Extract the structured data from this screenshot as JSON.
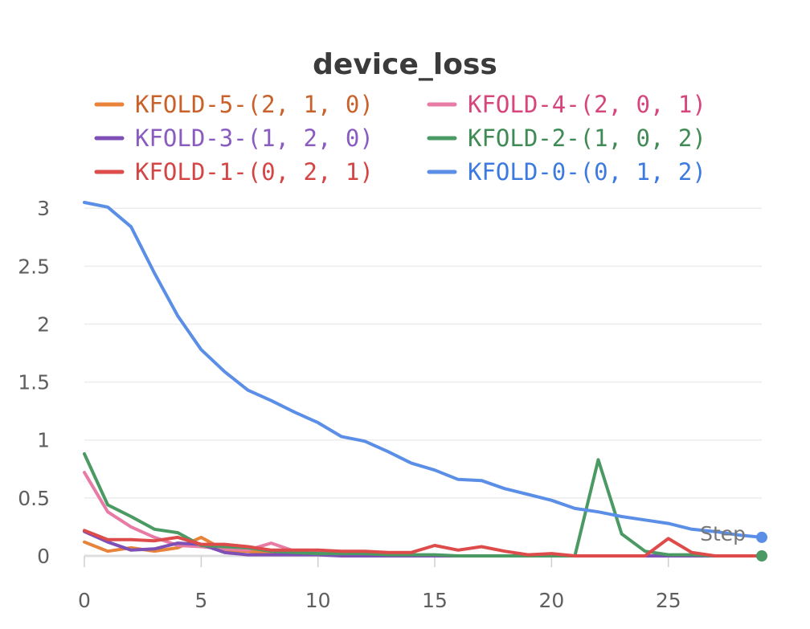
{
  "chart_data": {
    "type": "line",
    "title": "device_loss",
    "xlabel": "Step",
    "ylabel": "",
    "xlim": [
      0,
      29
    ],
    "ylim": [
      0,
      3.05
    ],
    "x_ticks": [
      0,
      5,
      10,
      15,
      20,
      25
    ],
    "y_ticks": [
      0,
      0.5,
      1,
      1.5,
      2,
      2.5,
      3
    ],
    "grid": true,
    "legend_position": "top",
    "x": [
      0,
      1,
      2,
      3,
      4,
      5,
      6,
      7,
      8,
      9,
      10,
      11,
      12,
      13,
      14,
      15,
      16,
      17,
      18,
      19,
      20,
      21,
      22,
      23,
      24,
      25,
      26,
      27,
      28,
      29
    ],
    "series": [
      {
        "name": "KFOLD-5-(2, 1, 0)",
        "color": "#e8833a",
        "text_color": "#c8622a",
        "values": [
          0.12,
          0.04,
          0.07,
          0.04,
          0.07,
          0.16,
          0.05,
          0.04,
          0.02,
          0.02,
          0.02,
          0.01,
          0.01,
          0.01,
          0.01,
          0.0,
          0.0,
          0.0,
          0.0,
          0.0,
          0.0,
          0.0,
          0.0,
          0.0,
          0.0,
          0.0,
          0.0,
          0.0,
          0.0,
          0.0
        ]
      },
      {
        "name": "KFOLD-4-(2, 0, 1)",
        "color": "#e87ba6",
        "text_color": "#d6457c",
        "values": [
          0.72,
          0.38,
          0.25,
          0.16,
          0.09,
          0.08,
          0.06,
          0.05,
          0.11,
          0.04,
          0.03,
          0.02,
          0.02,
          0.01,
          0.01,
          0.0,
          0.0,
          0.0,
          0.0,
          0.0,
          0.0,
          0.0,
          0.0,
          0.0,
          0.0,
          0.0,
          0.0,
          0.0,
          0.0,
          0.0
        ]
      },
      {
        "name": "KFOLD-3-(1, 2, 0)",
        "color": "#7e4fb5",
        "text_color": "#8a5cc0",
        "values": [
          0.21,
          0.12,
          0.05,
          0.06,
          0.11,
          0.1,
          0.03,
          0.01,
          0.01,
          0.01,
          0.01,
          0.0,
          0.0,
          0.0,
          0.0,
          0.0,
          0.0,
          0.0,
          0.0,
          0.0,
          0.0,
          0.0,
          0.0,
          0.0,
          0.0,
          0.0,
          0.0,
          0.0,
          0.0,
          0.0
        ]
      },
      {
        "name": "KFOLD-2-(1, 0, 2)",
        "color": "#4c9a63",
        "text_color": "#3f8a55",
        "values": [
          0.88,
          0.44,
          0.34,
          0.23,
          0.2,
          0.09,
          0.08,
          0.07,
          0.04,
          0.03,
          0.02,
          0.02,
          0.02,
          0.01,
          0.01,
          0.01,
          0.0,
          0.0,
          0.0,
          0.0,
          0.0,
          0.0,
          0.83,
          0.19,
          0.04,
          0.01,
          0.01,
          0.0,
          0.0,
          0.0
        ]
      },
      {
        "name": "KFOLD-1-(0, 2, 1)",
        "color": "#dd4b4b",
        "text_color": "#d44545",
        "values": [
          0.22,
          0.14,
          0.14,
          0.13,
          0.16,
          0.1,
          0.1,
          0.08,
          0.05,
          0.05,
          0.05,
          0.04,
          0.04,
          0.03,
          0.03,
          0.09,
          0.05,
          0.08,
          0.04,
          0.01,
          0.02,
          0.0,
          0.0,
          0.0,
          0.0,
          0.15,
          0.03,
          0.0,
          0.0,
          0.0
        ]
      },
      {
        "name": "KFOLD-0-(0, 1, 2)",
        "color": "#5b8ee6",
        "text_color": "#3d7ae0",
        "values": [
          3.05,
          3.01,
          2.84,
          2.44,
          2.07,
          1.78,
          1.59,
          1.43,
          1.34,
          1.24,
          1.15,
          1.03,
          0.99,
          0.9,
          0.8,
          0.74,
          0.66,
          0.65,
          0.58,
          0.53,
          0.48,
          0.41,
          0.38,
          0.34,
          0.31,
          0.28,
          0.23,
          0.21,
          0.18,
          0.16
        ]
      }
    ]
  }
}
